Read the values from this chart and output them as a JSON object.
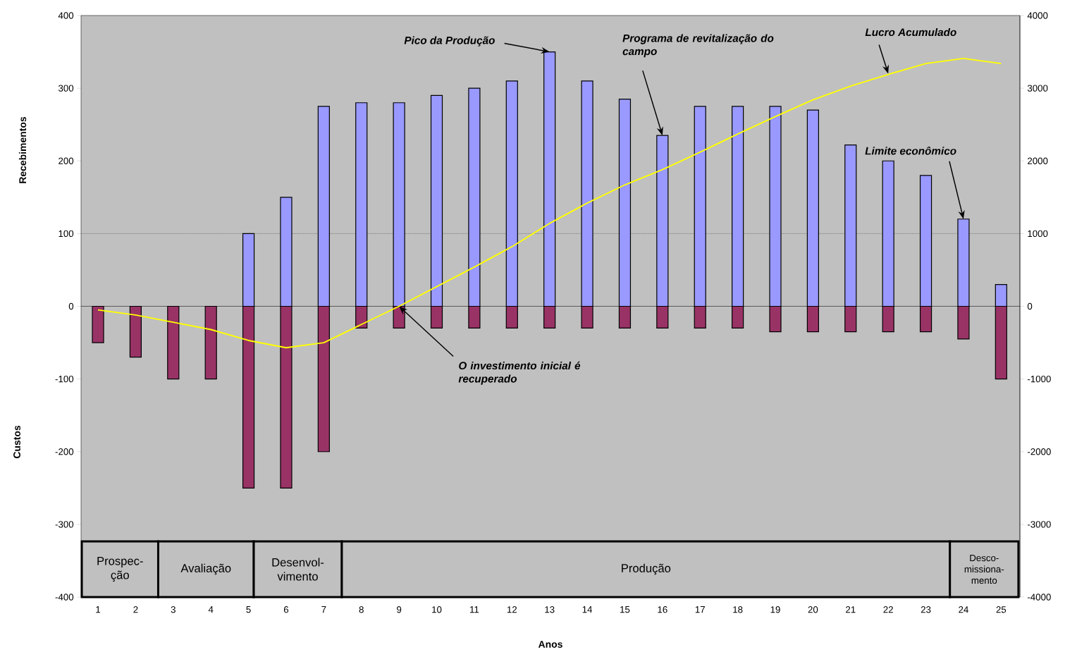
{
  "chart_data": {
    "type": "bar",
    "xlabel": "Anos",
    "ylabel": "Recebimentos",
    "x": [
      1,
      2,
      3,
      4,
      5,
      6,
      7,
      8,
      9,
      10,
      11,
      12,
      13,
      14,
      15,
      16,
      17,
      18,
      19,
      20,
      21,
      22,
      23,
      24,
      25
    ],
    "xlim": [
      0.55,
      25.5
    ],
    "xticks": [
      1,
      2,
      3,
      4,
      5,
      6,
      7,
      8,
      9,
      10,
      11,
      12,
      13,
      14,
      15,
      16,
      17,
      18,
      19,
      20,
      21,
      22,
      23,
      24,
      25
    ],
    "ylim": [
      -400,
      400
    ],
    "yticks": [
      -400,
      -300,
      -200,
      -100,
      0,
      100,
      200,
      300,
      400
    ],
    "y2lim": [
      -4000,
      4000
    ],
    "y2ticks": [
      -4000,
      -3000,
      -2000,
      -1000,
      0,
      1000,
      2000,
      3000,
      4000
    ],
    "series": [
      {
        "color": "#9999ff",
        "values": [
          null,
          null,
          null,
          null,
          100,
          150,
          275,
          280,
          280,
          290,
          300,
          310,
          350,
          310,
          285,
          235,
          275,
          275,
          275,
          270,
          222,
          200,
          180,
          120,
          30
        ]
      },
      {
        "color": "#993366",
        "values": [
          -50,
          -70,
          -100,
          -100,
          -250,
          -250,
          -200,
          -30,
          -30,
          -30,
          -30,
          -30,
          -30,
          -30,
          -30,
          -30,
          -30,
          -30,
          -35,
          -35,
          -35,
          -35,
          -35,
          -45,
          -100
        ]
      },
      {
        "type": "line",
        "color": "#ffff00",
        "axis": "y2",
        "values": [
          -50,
          -120,
          -220,
          -320,
          -470,
          -570,
          -500,
          -250,
          0,
          270,
          540,
          820,
          1140,
          1420,
          1670,
          1880,
          2120,
          2370,
          2610,
          2840,
          3030,
          3190,
          3340,
          3410,
          3340
        ]
      }
    ],
    "stacked": true,
    "ref_lines": [
      {
        "axis": "y",
        "value": 100,
        "line_style": "dotted"
      }
    ],
    "bands": [
      {
        "axis": "x",
        "from": 0.57,
        "to": 2.6,
        "label": "Prospec-ção"
      },
      {
        "axis": "x",
        "from": 2.6,
        "to": 5.14,
        "label": "Avaliação"
      },
      {
        "axis": "x",
        "from": 5.14,
        "to": 7.48,
        "label": "Desenvol-vimento"
      },
      {
        "axis": "x",
        "from": 7.48,
        "to": 23.64,
        "label": "Produção"
      },
      {
        "axis": "x",
        "from": 23.64,
        "to": 25.46,
        "label": "Desco-missiona-mento"
      }
    ],
    "annotations": [
      {
        "text": "Pico da Produção",
        "x": 13,
        "y": 350
      },
      {
        "text": "Programa de revitalização do campo",
        "x": 16,
        "y": 235
      },
      {
        "text": "Lucro Acumulado",
        "x": 22,
        "y": 320
      },
      {
        "text": "Limite econômico",
        "x": 24,
        "y": 120
      },
      {
        "text": "O investimento inicial é recuperado",
        "x": 9,
        "y": 0
      },
      "Custos"
    ]
  }
}
